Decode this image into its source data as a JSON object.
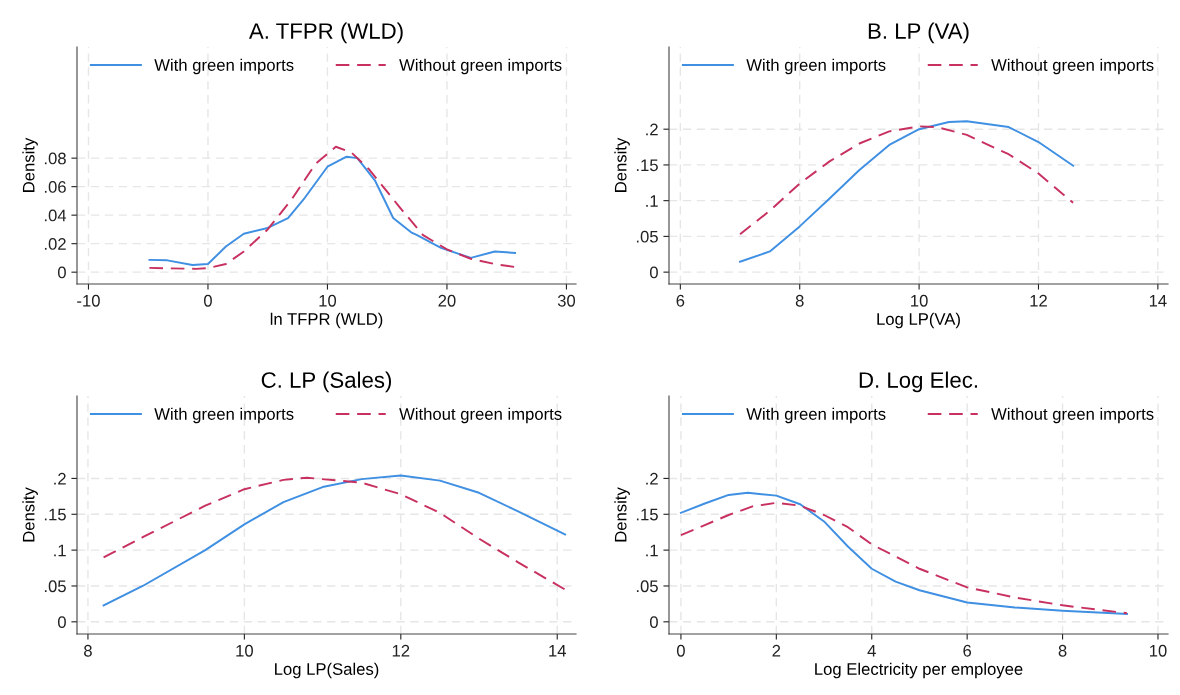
{
  "chart_data": [
    {
      "type": "line",
      "title": "A. TFPR (WLD)",
      "xlabel": "ln TFPR (WLD)",
      "ylabel": "Density",
      "xlim": [
        -10.96,
        30.8
      ],
      "ylim": [
        -0.0083,
        0.158
      ],
      "xticks": [
        -10,
        0,
        10,
        20,
        30
      ],
      "yticks": [
        0,
        {
          "value": 0.02,
          "label": ".02"
        },
        {
          "value": 0.04,
          "label": ".04"
        },
        {
          "value": 0.06,
          "label": ".06"
        },
        {
          "value": 0.08,
          "label": ".08"
        }
      ],
      "grid": true,
      "legend": "top",
      "series": [
        {
          "name": "With green imports",
          "color": "#3f8fe3",
          "line_style": "solid",
          "x": [
            -4.9,
            -3.4,
            -1.3,
            0,
            1.5,
            3,
            5,
            6.7,
            8,
            10,
            11.6,
            12.5,
            14,
            15.5,
            17,
            17.5,
            19.5,
            22,
            24,
            25.7
          ],
          "values": [
            0.0086,
            0.0083,
            0.005,
            0.0057,
            0.018,
            0.027,
            0.031,
            0.038,
            0.051,
            0.074,
            0.081,
            0.08,
            0.064,
            0.038,
            0.028,
            0.026,
            0.017,
            0.01,
            0.0145,
            0.0135
          ]
        },
        {
          "name": "Without green imports",
          "color": "#c8315f",
          "line_style": "dashed",
          "x": [
            -4.9,
            -1,
            0,
            1.5,
            3,
            5,
            7,
            9,
            10.7,
            12,
            13.5,
            16,
            18,
            20,
            22,
            24,
            25.7
          ],
          "values": [
            0.003,
            0.0023,
            0.0029,
            0.0057,
            0.0145,
            0.03,
            0.051,
            0.076,
            0.088,
            0.084,
            0.072,
            0.046,
            0.026,
            0.016,
            0.0094,
            0.0057,
            0.0036
          ]
        }
      ]
    },
    {
      "type": "line",
      "title": "B. LP (VA)",
      "xlabel": "Log LP(VA)",
      "ylabel": "Density",
      "xlim": [
        5.81,
        14.17
      ],
      "ylim": [
        -0.0166,
        0.315
      ],
      "xticks": [
        6,
        8,
        10,
        12,
        14
      ],
      "yticks": [
        0,
        {
          "value": 0.05,
          "label": ".05"
        },
        {
          "value": 0.1,
          "label": ".1"
        },
        {
          "value": 0.15,
          "label": ".15"
        },
        {
          "value": 0.2,
          "label": ".2"
        }
      ],
      "grid": true,
      "legend": "top",
      "series": [
        {
          "name": "With green imports",
          "color": "#3f8fe3",
          "line_style": "solid",
          "x": [
            7.0,
            7.5,
            8,
            8.5,
            9,
            9.5,
            10,
            10.5,
            10.8,
            11.5,
            12,
            12.58
          ],
          "values": [
            0.0145,
            0.029,
            0.064,
            0.103,
            0.143,
            0.178,
            0.2,
            0.21,
            0.211,
            0.203,
            0.182,
            0.149
          ]
        },
        {
          "name": "Without green imports",
          "color": "#c8315f",
          "line_style": "dashed",
          "x": [
            7.0,
            7.5,
            8,
            8.5,
            9,
            9.5,
            10,
            10.3,
            10.8,
            11.5,
            12,
            12.58
          ],
          "values": [
            0.053,
            0.086,
            0.124,
            0.155,
            0.18,
            0.197,
            0.204,
            0.203,
            0.192,
            0.165,
            0.138,
            0.097
          ]
        }
      ]
    },
    {
      "type": "line",
      "title": "C. LP (Sales)",
      "xlabel": "Log LP(Sales)",
      "ylabel": "Density",
      "xlim": [
        7.86,
        14.24
      ],
      "ylim": [
        -0.017,
        0.315
      ],
      "xticks": [
        8,
        10,
        12,
        14
      ],
      "yticks": [
        0,
        {
          "value": 0.05,
          "label": ".05"
        },
        {
          "value": 0.1,
          "label": ".1"
        },
        {
          "value": 0.15,
          "label": ".15"
        },
        {
          "value": 0.2,
          "label": ".2"
        }
      ],
      "grid": true,
      "legend": "top",
      "series": [
        {
          "name": "With green imports",
          "color": "#3f8fe3",
          "line_style": "solid",
          "x": [
            8.2,
            8.7,
            9.5,
            10,
            10.5,
            11,
            11.5,
            12,
            12.5,
            13,
            13.5,
            14.1
          ],
          "values": [
            0.023,
            0.05,
            0.1,
            0.136,
            0.167,
            0.188,
            0.199,
            0.204,
            0.197,
            0.18,
            0.154,
            0.122
          ]
        },
        {
          "name": "Without green imports",
          "color": "#c8315f",
          "line_style": "dashed",
          "x": [
            8.2,
            8.7,
            9.5,
            10,
            10.5,
            10.8,
            11.5,
            12,
            12.5,
            13,
            13.5,
            14.1
          ],
          "values": [
            0.09,
            0.118,
            0.162,
            0.185,
            0.198,
            0.201,
            0.194,
            0.178,
            0.152,
            0.116,
            0.083,
            0.045
          ]
        }
      ]
    },
    {
      "type": "line",
      "title": "D. Log Elec.",
      "xlabel": "Log Electricity per employee",
      "ylabel": "Density",
      "xlim": [
        -0.25,
        10.21
      ],
      "ylim": [
        -0.017,
        0.315
      ],
      "xticks": [
        0,
        2,
        4,
        6,
        8,
        10
      ],
      "yticks": [
        0,
        {
          "value": 0.05,
          "label": ".05"
        },
        {
          "value": 0.1,
          "label": ".1"
        },
        {
          "value": 0.15,
          "label": ".15"
        },
        {
          "value": 0.2,
          "label": ".2"
        }
      ],
      "grid": true,
      "legend": "top",
      "series": [
        {
          "name": "With green imports",
          "color": "#3f8fe3",
          "line_style": "solid",
          "x": [
            0,
            0.5,
            1,
            1.4,
            2,
            2.5,
            3,
            3.5,
            4,
            4.5,
            5,
            6,
            7,
            8,
            9.35
          ],
          "values": [
            0.152,
            0.165,
            0.177,
            0.18,
            0.176,
            0.164,
            0.14,
            0.105,
            0.074,
            0.056,
            0.044,
            0.027,
            0.02,
            0.0155,
            0.011
          ]
        },
        {
          "name": "Without green imports",
          "color": "#c8315f",
          "line_style": "dashed",
          "x": [
            0,
            0.5,
            1,
            1.5,
            2,
            2.5,
            3,
            3.5,
            4,
            5,
            6,
            7,
            8,
            9.35
          ],
          "values": [
            0.121,
            0.135,
            0.149,
            0.161,
            0.166,
            0.162,
            0.149,
            0.132,
            0.108,
            0.074,
            0.048,
            0.034,
            0.023,
            0.012
          ]
        }
      ]
    }
  ]
}
